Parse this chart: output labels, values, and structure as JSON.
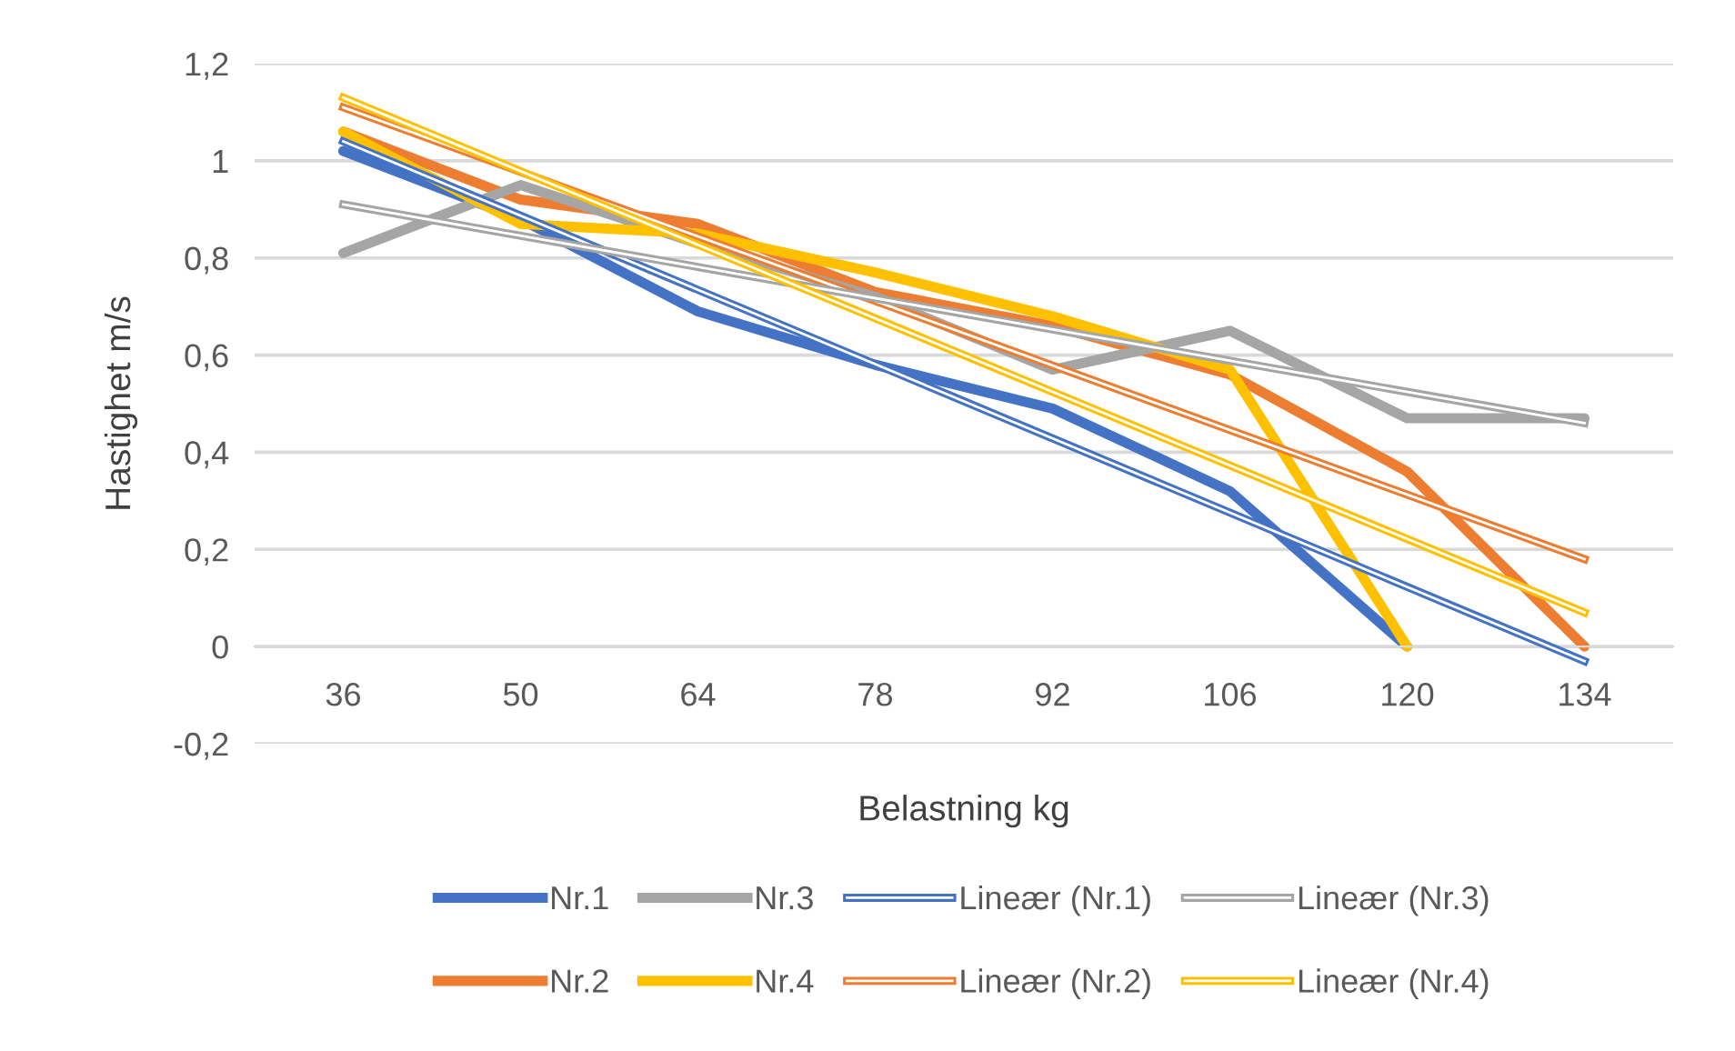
{
  "chart_data": {
    "type": "line",
    "xlabel": "Belastning kg",
    "ylabel": "Hastighet m/s",
    "categories": [
      "36",
      "50",
      "64",
      "78",
      "92",
      "106",
      "120",
      "134"
    ],
    "series": [
      {
        "name": "Nr.1",
        "color": "#4472c4",
        "values": [
          1.02,
          0.88,
          0.69,
          0.58,
          0.49,
          0.32,
          0,
          null
        ]
      },
      {
        "name": "Nr.2",
        "color": "#ed7d31",
        "values": [
          1.06,
          0.92,
          0.87,
          0.73,
          0.66,
          0.56,
          0.36,
          0
        ]
      },
      {
        "name": "Nr.3",
        "color": "#a5a5a5",
        "values": [
          0.81,
          0.95,
          0.83,
          0.72,
          0.57,
          0.65,
          0.47,
          0.47
        ]
      },
      {
        "name": "Nr.4",
        "color": "#ffc000",
        "values": [
          1.06,
          0.87,
          0.85,
          0.77,
          0.68,
          0.57,
          0,
          null
        ]
      },
      {
        "name": "Lineær (Nr.1)",
        "color": "#4472c4",
        "x": [
          "36",
          "134"
        ],
        "values": [
          1.04,
          -0.03
        ]
      },
      {
        "name": "Lineær (Nr.2)",
        "color": "#ed7d31",
        "x": [
          "36",
          "134"
        ],
        "values": [
          1.11,
          0.18
        ]
      },
      {
        "name": "Lineær (Nr.3)",
        "color": "#a5a5a5",
        "x": [
          "36",
          "134"
        ],
        "values": [
          0.91,
          0.46
        ]
      },
      {
        "name": "Lineær (Nr.4)",
        "color": "#ffc000",
        "x": [
          "36",
          "134"
        ],
        "values": [
          1.13,
          0.07
        ]
      }
    ],
    "ylim": [
      -0.2,
      1.2
    ],
    "yticks": [
      {
        "value": -0.2,
        "label": "-0,2"
      },
      0,
      {
        "value": 0.2,
        "label": "0,2"
      },
      {
        "value": 0.4,
        "label": "0,4"
      },
      {
        "value": 0.6,
        "label": "0,6"
      },
      {
        "value": 0.8,
        "label": "0,8"
      },
      1,
      {
        "value": 1.2,
        "label": "1,2"
      }
    ],
    "grid": "y",
    "legend": "bottom"
  }
}
